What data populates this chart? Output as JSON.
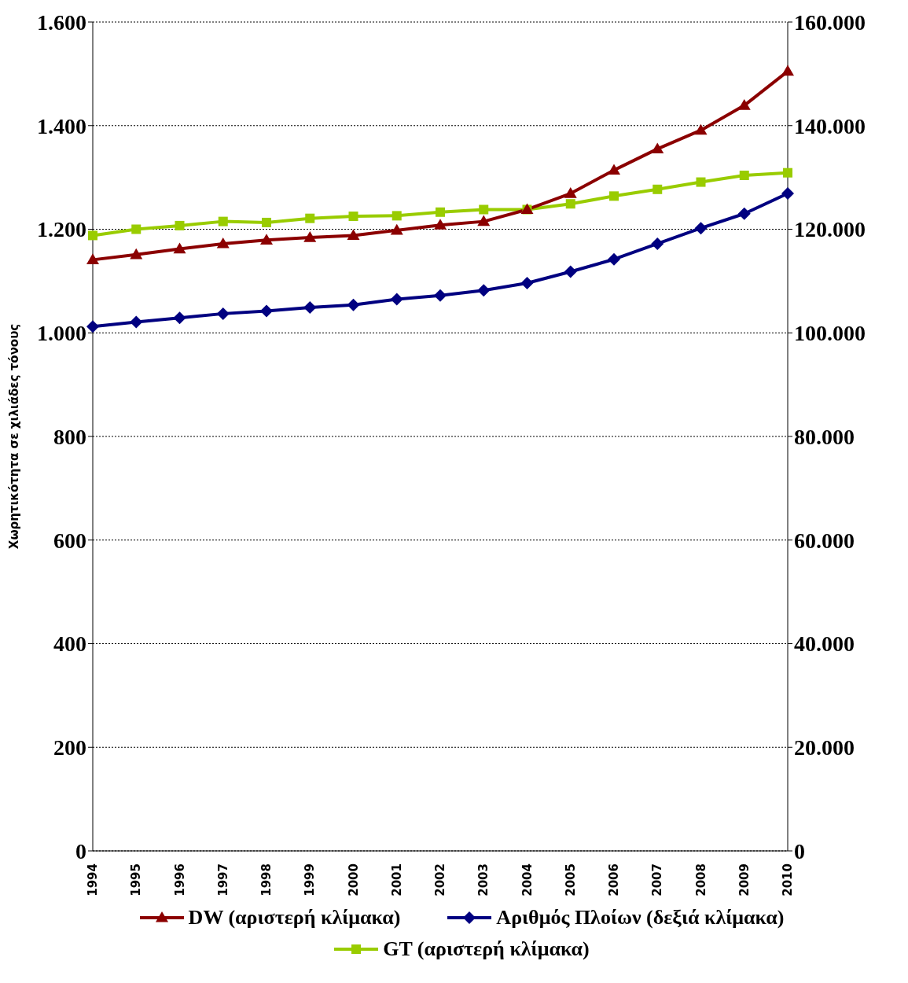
{
  "chart_data": {
    "type": "line",
    "ylabel": "Χωρητικότητα σε χιλιάδες τόνους",
    "categories": [
      "1994",
      "1995",
      "1996",
      "1997",
      "1998",
      "1999",
      "2000",
      "2001",
      "2002",
      "2003",
      "2004",
      "2005",
      "2006",
      "2007",
      "2008",
      "2009",
      "2010"
    ],
    "series": [
      {
        "name": "DW (αριστερή κλίμακα)",
        "color": "#8b0000",
        "marker": "triangle",
        "values": [
          1141,
          1151,
          1162,
          1172,
          1179,
          1184,
          1188,
          1198,
          1208,
          1215,
          1238,
          1269,
          1314,
          1355,
          1391,
          1439,
          1505
        ]
      },
      {
        "name": "Αριθμός Πλοίων (δεξιά κλίμακα)",
        "color": "#000080",
        "marker": "diamond",
        "axis": "y2",
        "values": [
          101200,
          102100,
          102900,
          103700,
          104200,
          104900,
          105400,
          106500,
          107200,
          108200,
          109600,
          111800,
          114200,
          117200,
          120200,
          123000,
          126900
        ]
      },
      {
        "name": "GT (αριστερή κλίμακα)",
        "color": "#99cc00",
        "marker": "square",
        "values": [
          1188,
          1200,
          1207,
          1215,
          1213,
          1221,
          1225,
          1226,
          1233,
          1238,
          1238,
          1249,
          1264,
          1277,
          1291,
          1304,
          1309
        ]
      }
    ],
    "ylim": [
      0,
      1600
    ],
    "yticks": [
      0,
      200,
      400,
      600,
      800,
      {
        "value": 1000,
        "label": "1.000"
      },
      {
        "value": 1200,
        "label": "1.200"
      },
      {
        "value": 1400,
        "label": "1.400"
      },
      {
        "value": 1600,
        "label": "1.600"
      }
    ],
    "y2lim": [
      0,
      160000
    ],
    "y2ticks": [
      {
        "value": 0,
        "label": "0"
      },
      {
        "value": 20000,
        "label": "20.000"
      },
      {
        "value": 40000,
        "label": "40.000"
      },
      {
        "value": 60000,
        "label": "60.000"
      },
      {
        "value": 80000,
        "label": "80.000"
      },
      {
        "value": 100000,
        "label": "100.000"
      },
      {
        "value": 120000,
        "label": "120.000"
      },
      {
        "value": 140000,
        "label": "140.000"
      },
      {
        "value": 160000,
        "label": "160.000"
      }
    ],
    "grid": "y",
    "legend": "bottom",
    "line_style": "solid"
  }
}
